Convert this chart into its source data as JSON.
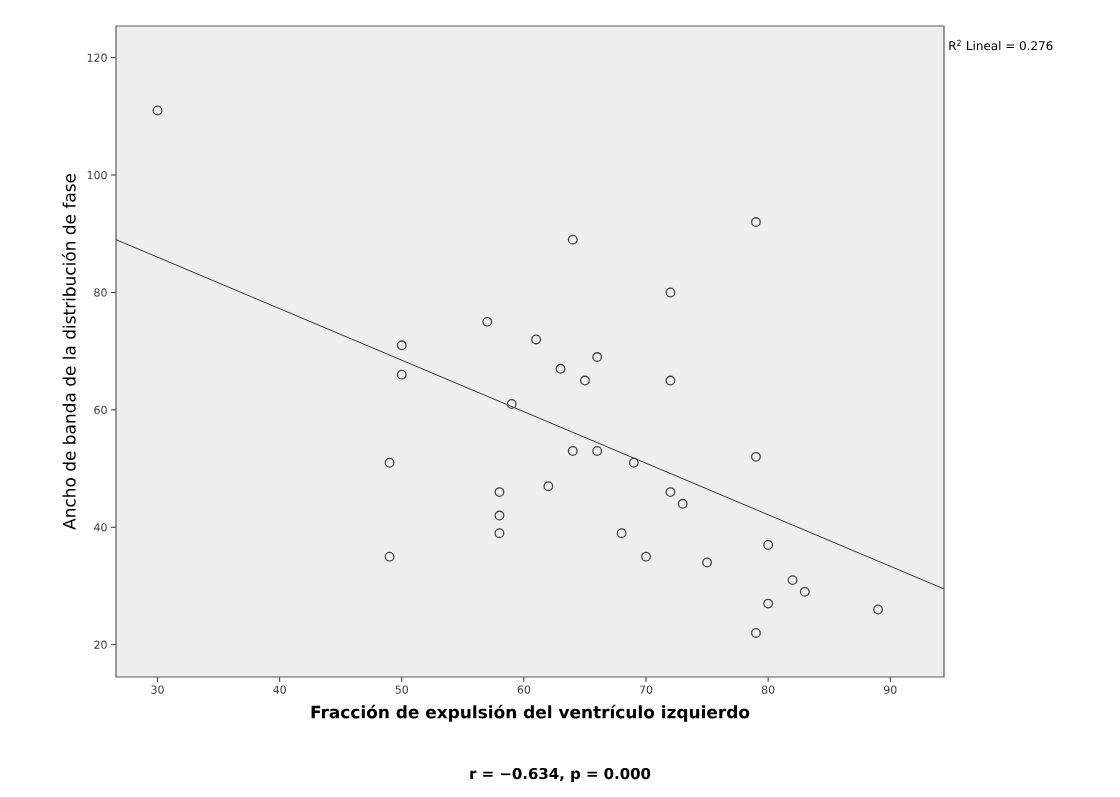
{
  "chart_data": {
    "type": "scatter",
    "xlabel": "Fracción de expulsión del ventrículo izquierdo",
    "ylabel": "Ancho de banda de la distribución de fase",
    "marker": "circle",
    "xlim": [
      26.6,
      94.4
    ],
    "ylim": [
      14.5,
      125.4
    ],
    "xticks": [
      30,
      40,
      50,
      60,
      70,
      80,
      90
    ],
    "yticks": [
      20,
      40,
      60,
      80,
      100,
      120
    ],
    "series": [
      {
        "color": "#444444",
        "x": [
          30,
          49,
          49,
          50,
          50,
          57,
          58,
          58,
          58,
          59,
          61,
          62,
          63,
          64,
          64,
          65,
          66,
          66,
          68,
          69,
          70,
          72,
          72,
          72,
          73,
          75,
          79,
          79,
          79,
          80,
          80,
          82,
          83,
          89
        ],
        "values": [
          111,
          51,
          35,
          71,
          66,
          75,
          46,
          42,
          39,
          61,
          72,
          47,
          67,
          89,
          53,
          65,
          69,
          53,
          39,
          51,
          35,
          80,
          65,
          46,
          44,
          34,
          92,
          52,
          22,
          37,
          27,
          31,
          29,
          26
        ]
      },
      {
        "type": "line",
        "marker": "none",
        "color": "#333333",
        "x": [
          26.6,
          94.4
        ],
        "values": [
          89,
          29.5
        ]
      }
    ],
    "annotations": [
      "R$^{2}$ Lineal = 0.276",
      "r = −0.634, p = 0.000"
    ]
  }
}
